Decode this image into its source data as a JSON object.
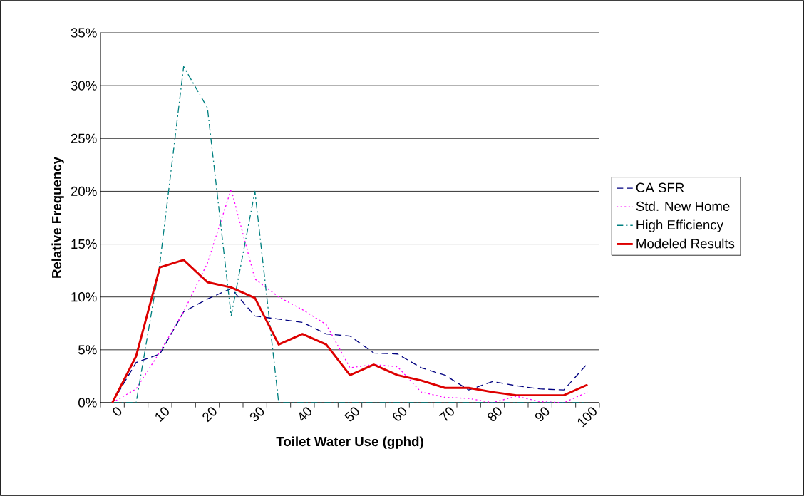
{
  "chart_data": {
    "type": "line",
    "xlabel": "Toilet Water Use (gphd)",
    "ylabel": "Relative Frequency",
    "categories": [
      "0",
      null,
      "10",
      null,
      "20",
      null,
      "30",
      null,
      "40",
      null,
      "50",
      null,
      "60",
      null,
      "70",
      null,
      "80",
      null,
      "90",
      null,
      "100"
    ],
    "series": [
      {
        "name": "CA SFR",
        "color": "#000080",
        "line_style": "dashed",
        "values": [
          0,
          3.8,
          4.6,
          8.6,
          9.8,
          10.8,
          8.2,
          7.9,
          7.6,
          6.5,
          6.3,
          4.7,
          4.6,
          3.3,
          2.6,
          1.2,
          2.0,
          1.6,
          1.3,
          1.2,
          3.7
        ]
      },
      {
        "name": "Std. New Home",
        "color": "#ff00ff",
        "line_style": "dotted",
        "values": [
          0,
          1.3,
          4.8,
          8.6,
          13.2,
          20.2,
          11.7,
          10.0,
          8.8,
          7.4,
          3.3,
          3.6,
          3.4,
          1.0,
          0.5,
          0.4,
          0,
          0.6,
          0.1,
          0,
          1.0
        ]
      },
      {
        "name": "High Efficiency",
        "color": "#008080",
        "line_style": "dashdot",
        "values": [
          0,
          0,
          13.2,
          31.8,
          27.9,
          8.2,
          20.0,
          0,
          0,
          0,
          0,
          0,
          0,
          0,
          0,
          0,
          0,
          0,
          0,
          0,
          0
        ]
      },
      {
        "name": "Modeled Results",
        "color": "#dd0000",
        "line_style": "solid",
        "values": [
          0,
          4.4,
          12.8,
          13.5,
          11.4,
          10.9,
          9.9,
          5.5,
          6.5,
          5.5,
          2.6,
          3.6,
          2.6,
          2.1,
          1.4,
          1.4,
          1.0,
          0.7,
          0.7,
          0.7,
          1.7
        ]
      }
    ],
    "ylim": [
      0,
      35
    ],
    "yticks": [
      {
        "value": 0,
        "label": "0%"
      },
      {
        "value": 5,
        "label": "5%"
      },
      {
        "value": 10,
        "label": "10%"
      },
      {
        "value": 15,
        "label": "15%"
      },
      {
        "value": 20,
        "label": "20%"
      },
      {
        "value": 25,
        "label": "25%"
      },
      {
        "value": 30,
        "label": "30%"
      },
      {
        "value": 35,
        "label": "35%"
      }
    ],
    "grid": "y",
    "legend": "right",
    "marker": "none"
  }
}
